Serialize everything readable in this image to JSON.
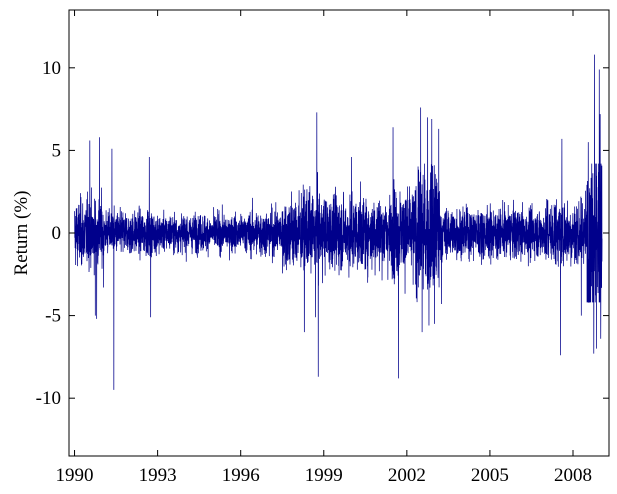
{
  "chart_data": {
    "type": "line",
    "title": "",
    "xlabel": "",
    "ylabel": "Return (%)",
    "xlim": [
      1989.8,
      2009.3
    ],
    "ylim": [
      -13.5,
      13.5
    ],
    "x_ticks": [
      1990,
      1993,
      1996,
      1999,
      2002,
      2005,
      2008
    ],
    "x_tick_labels": [
      "1990",
      "1993",
      "1996",
      "1999",
      "2002",
      "2005",
      "2008"
    ],
    "y_ticks": [
      10,
      5,
      0,
      -5,
      -10
    ],
    "y_tick_labels": [
      "10",
      "5",
      "0",
      "-5",
      "-10"
    ],
    "grid": false,
    "legend": "none",
    "x_start": 1990.0,
    "x_end": 2009.05,
    "volatility_regimes": [
      {
        "x": [
          1990.0,
          1991.0
        ],
        "sd": 1.0
      },
      {
        "x": [
          1991.0,
          1993.0
        ],
        "sd": 0.65
      },
      {
        "x": [
          1993.0,
          1996.3
        ],
        "sd": 0.55
      },
      {
        "x": [
          1996.3,
          1997.5
        ],
        "sd": 0.7
      },
      {
        "x": [
          1997.5,
          1999.0
        ],
        "sd": 1.15
      },
      {
        "x": [
          1999.0,
          2001.5
        ],
        "sd": 1.1
      },
      {
        "x": [
          2001.5,
          2002.3
        ],
        "sd": 1.3
      },
      {
        "x": [
          2002.3,
          2003.2
        ],
        "sd": 1.85
      },
      {
        "x": [
          2003.2,
          2007.0
        ],
        "sd": 0.75
      },
      {
        "x": [
          2007.0,
          2008.5
        ],
        "sd": 1.0
      },
      {
        "x": [
          2008.5,
          2009.05
        ],
        "sd": 2.7
      }
    ],
    "extreme_values": [
      {
        "x": 1990.55,
        "y": 5.6
      },
      {
        "x": 1990.75,
        "y": -5.0
      },
      {
        "x": 1990.9,
        "y": 5.8
      },
      {
        "x": 1990.8,
        "y": -5.2
      },
      {
        "x": 1991.35,
        "y": 5.1
      },
      {
        "x": 1991.05,
        "y": -3.3
      },
      {
        "x": 1991.42,
        "y": -9.5
      },
      {
        "x": 1992.7,
        "y": 4.6
      },
      {
        "x": 1992.75,
        "y": -5.1
      },
      {
        "x": 1998.3,
        "y": -6.0
      },
      {
        "x": 1998.75,
        "y": 7.3
      },
      {
        "x": 1998.7,
        "y": -5.1
      },
      {
        "x": 1998.8,
        "y": -8.7
      },
      {
        "x": 2000.0,
        "y": 4.6
      },
      {
        "x": 2001.5,
        "y": 6.4
      },
      {
        "x": 2001.7,
        "y": -8.8
      },
      {
        "x": 2002.5,
        "y": 7.6
      },
      {
        "x": 2002.55,
        "y": -6.0
      },
      {
        "x": 2002.75,
        "y": 7.0
      },
      {
        "x": 2002.8,
        "y": -5.6
      },
      {
        "x": 2002.9,
        "y": 6.9
      },
      {
        "x": 2003.0,
        "y": -5.5
      },
      {
        "x": 2003.15,
        "y": 6.3
      },
      {
        "x": 2003.25,
        "y": -4.3
      },
      {
        "x": 2007.6,
        "y": 5.7
      },
      {
        "x": 2007.55,
        "y": -7.4
      },
      {
        "x": 2008.3,
        "y": -5.0
      },
      {
        "x": 2008.55,
        "y": 5.5
      },
      {
        "x": 2008.75,
        "y": -7.3
      },
      {
        "x": 2008.78,
        "y": 10.8
      },
      {
        "x": 2008.85,
        "y": -7.0
      },
      {
        "x": 2008.95,
        "y": 9.9
      },
      {
        "x": 2008.98,
        "y": 7.2
      },
      {
        "x": 2009.0,
        "y": -6.4
      }
    ],
    "series": [
      {
        "color": "#00008B"
      }
    ]
  }
}
